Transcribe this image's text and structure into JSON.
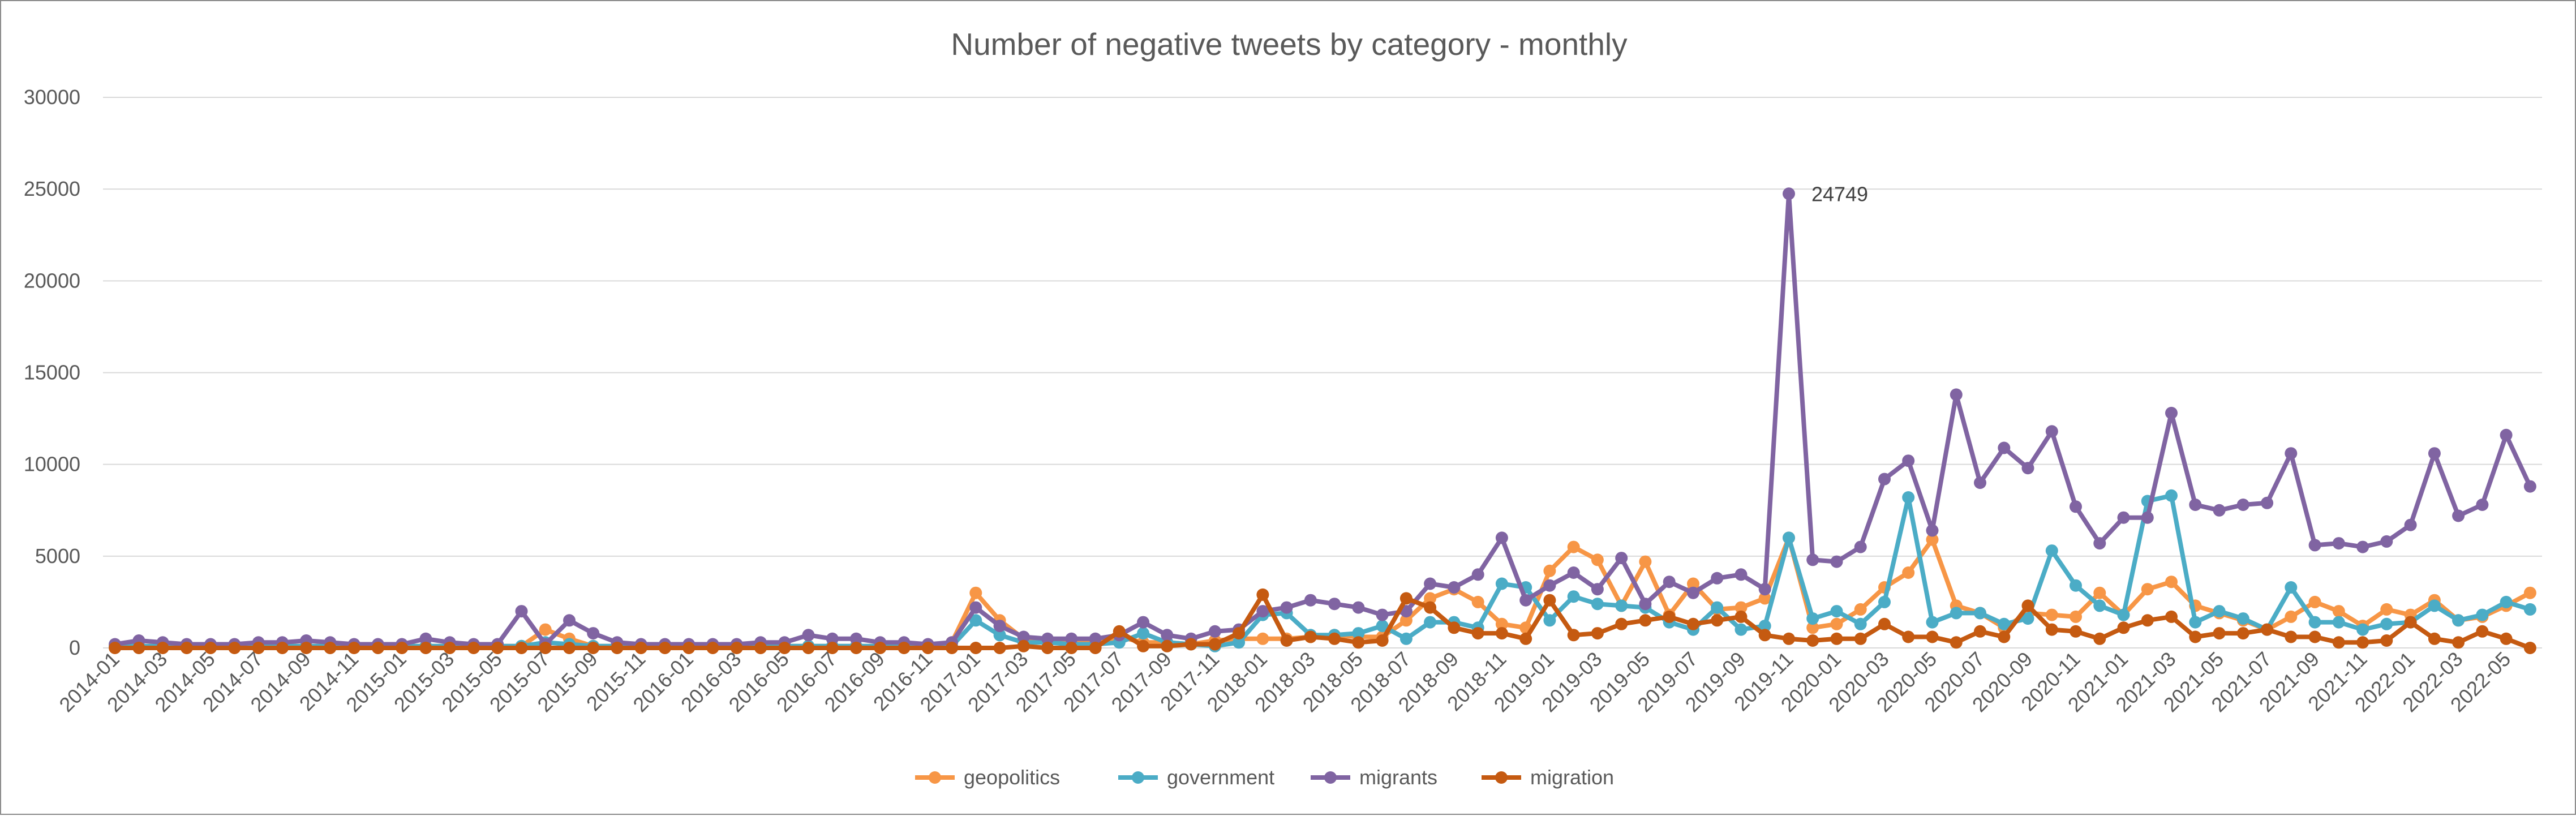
{
  "chart_data": {
    "type": "line",
    "title": "Number of negative tweets by category - monthly",
    "xlabel": "",
    "ylabel": "",
    "ylim": [
      0,
      30000
    ],
    "y_ticks": [
      "0",
      "5000",
      "10000",
      "15000",
      "20000",
      "25000",
      "30000"
    ],
    "grid": "horizontal",
    "legend_position": "bottom",
    "x": [
      "2014-01",
      "2014-02",
      "2014-03",
      "2014-04",
      "2014-05",
      "2014-06",
      "2014-07",
      "2014-08",
      "2014-09",
      "2014-10",
      "2014-11",
      "2014-12",
      "2015-01",
      "2015-02",
      "2015-03",
      "2015-04",
      "2015-05",
      "2015-06",
      "2015-07",
      "2015-08",
      "2015-09",
      "2015-10",
      "2015-11",
      "2015-12",
      "2016-01",
      "2016-02",
      "2016-03",
      "2016-04",
      "2016-05",
      "2016-06",
      "2016-07",
      "2016-08",
      "2016-09",
      "2016-10",
      "2016-11",
      "2016-12",
      "2017-01",
      "2017-02",
      "2017-03",
      "2017-04",
      "2017-05",
      "2017-06",
      "2017-07",
      "2017-08",
      "2017-09",
      "2017-10",
      "2017-11",
      "2017-12",
      "2018-01",
      "2018-02",
      "2018-03",
      "2018-04",
      "2018-05",
      "2018-06",
      "2018-07",
      "2018-08",
      "2018-09",
      "2018-10",
      "2018-11",
      "2018-12",
      "2019-01",
      "2019-02",
      "2019-03",
      "2019-04",
      "2019-05",
      "2019-06",
      "2019-07",
      "2019-08",
      "2019-09",
      "2019-10",
      "2019-11",
      "2019-12",
      "2020-01",
      "2020-02",
      "2020-03",
      "2020-04",
      "2020-05",
      "2020-06",
      "2020-07",
      "2020-08",
      "2020-09",
      "2020-10",
      "2020-11",
      "2020-12",
      "2021-01",
      "2021-02",
      "2021-03",
      "2021-04",
      "2021-05",
      "2021-06",
      "2021-07",
      "2021-08",
      "2021-09",
      "2021-10",
      "2021-11",
      "2021-12",
      "2022-01",
      "2022-02",
      "2022-03",
      "2022-04",
      "2022-05",
      "2022-06"
    ],
    "x_tick_labels": [
      "2014-01",
      "2014-03",
      "2014-05",
      "2014-07",
      "2014-09",
      "2014-11",
      "2015-01",
      "2015-03",
      "2015-05",
      "2015-07",
      "2015-09",
      "2015-11",
      "2016-01",
      "2016-03",
      "2016-05",
      "2016-07",
      "2016-09",
      "2016-11",
      "2017-01",
      "2017-03",
      "2017-05",
      "2017-07",
      "2017-09",
      "2017-11",
      "2018-01",
      "2018-03",
      "2018-05",
      "2018-07",
      "2018-09",
      "2018-11",
      "2019-01",
      "2019-03",
      "2019-05",
      "2019-07",
      "2019-09",
      "2019-11",
      "2020-01",
      "2020-03",
      "2020-05",
      "2020-07",
      "2020-09",
      "2020-11",
      "2021-01",
      "2021-03",
      "2021-05",
      "2021-07",
      "2021-09",
      "2021-11",
      "2022-01",
      "2022-03",
      "2022-05"
    ],
    "series": [
      {
        "name": "geopolitics",
        "color": "#F79646",
        "values": [
          100,
          100,
          100,
          100,
          100,
          100,
          100,
          100,
          100,
          100,
          100,
          100,
          100,
          100,
          100,
          100,
          100,
          100,
          1000,
          500,
          100,
          100,
          100,
          100,
          100,
          100,
          100,
          100,
          100,
          100,
          100,
          100,
          100,
          100,
          100,
          300,
          3000,
          1500,
          500,
          300,
          300,
          300,
          600,
          300,
          300,
          200,
          400,
          500,
          500,
          500,
          600,
          700,
          600,
          600,
          1500,
          2700,
          3200,
          2500,
          1300,
          1100,
          4200,
          5500,
          4800,
          2300,
          4700,
          1800,
          3500,
          2100,
          2200,
          2700,
          6000,
          1100,
          1300,
          2100,
          3300,
          4100,
          5900,
          2300,
          1900,
          1100,
          1900,
          1800,
          1700,
          3000,
          1800,
          3200,
          3600,
          2300,
          1900,
          1500,
          1000,
          1700,
          2500,
          2000,
          1200,
          2100,
          1800,
          2600,
          1500,
          1700,
          2300,
          3000
        ]
      },
      {
        "name": "government",
        "color": "#4BACC6",
        "values": [
          100,
          100,
          100,
          100,
          100,
          100,
          100,
          100,
          100,
          100,
          100,
          100,
          100,
          100,
          100,
          100,
          100,
          100,
          300,
          200,
          100,
          100,
          100,
          100,
          100,
          100,
          100,
          100,
          100,
          100,
          100,
          100,
          100,
          100,
          100,
          100,
          1500,
          700,
          300,
          300,
          200,
          200,
          300,
          800,
          300,
          200,
          100,
          300,
          1800,
          1900,
          700,
          700,
          800,
          1200,
          500,
          1400,
          1400,
          1100,
          3500,
          3300,
          1500,
          2800,
          2400,
          2300,
          2200,
          1400,
          1000,
          2200,
          1000,
          1200,
          6000,
          1600,
          2000,
          1300,
          2500,
          8200,
          1400,
          1900,
          1900,
          1300,
          1600,
          5300,
          3400,
          2300,
          1800,
          8000,
          8300,
          1400,
          2000,
          1600,
          1000,
          3300,
          1400,
          1400,
          1000,
          1300,
          1400,
          2300,
          1500,
          1800,
          2500,
          2100
        ]
      },
      {
        "name": "migrants",
        "color": "#8064A2",
        "values": [
          200,
          400,
          300,
          200,
          200,
          200,
          300,
          300,
          400,
          300,
          200,
          200,
          200,
          500,
          300,
          200,
          200,
          2000,
          200,
          1500,
          800,
          300,
          200,
          200,
          200,
          200,
          200,
          300,
          300,
          700,
          500,
          500,
          300,
          300,
          200,
          300,
          2200,
          1200,
          600,
          500,
          500,
          500,
          700,
          1400,
          700,
          500,
          900,
          1000,
          2000,
          2200,
          2600,
          2400,
          2200,
          1800,
          2000,
          3500,
          3300,
          4000,
          6000,
          2600,
          3400,
          4100,
          3200,
          4900,
          2400,
          3600,
          3000,
          3800,
          4000,
          3200,
          24749,
          4800,
          4700,
          5500,
          9200,
          10200,
          6400,
          13800,
          9000,
          10900,
          9800,
          11800,
          7700,
          5700,
          7100,
          7100,
          12800,
          7800,
          7500,
          7800,
          7900,
          10600,
          5600,
          5700,
          5500,
          5800,
          6700,
          10600,
          7200,
          7800,
          11600,
          8800
        ]
      },
      {
        "name": "migration",
        "color": "#C55A11",
        "values": [
          0,
          0,
          0,
          0,
          0,
          0,
          0,
          0,
          0,
          0,
          0,
          0,
          0,
          0,
          0,
          0,
          0,
          0,
          0,
          0,
          0,
          0,
          0,
          0,
          0,
          0,
          0,
          0,
          0,
          0,
          0,
          0,
          0,
          0,
          0,
          0,
          0,
          0,
          100,
          0,
          0,
          0,
          900,
          100,
          100,
          200,
          200,
          800,
          2900,
          400,
          600,
          500,
          300,
          400,
          2700,
          2200,
          1100,
          800,
          800,
          500,
          2600,
          700,
          800,
          1300,
          1500,
          1700,
          1300,
          1500,
          1700,
          700,
          500,
          400,
          500,
          500,
          1300,
          600,
          600,
          300,
          900,
          600,
          2300,
          1000,
          900,
          500,
          1100,
          1500,
          1700,
          600,
          800,
          800,
          1000,
          600,
          600,
          300,
          300,
          400,
          1400,
          500,
          300,
          900,
          500,
          0
        ]
      }
    ],
    "annotations": [
      {
        "series": "migrants",
        "x": "2019-11",
        "y": 24749,
        "label": "24749"
      }
    ]
  }
}
